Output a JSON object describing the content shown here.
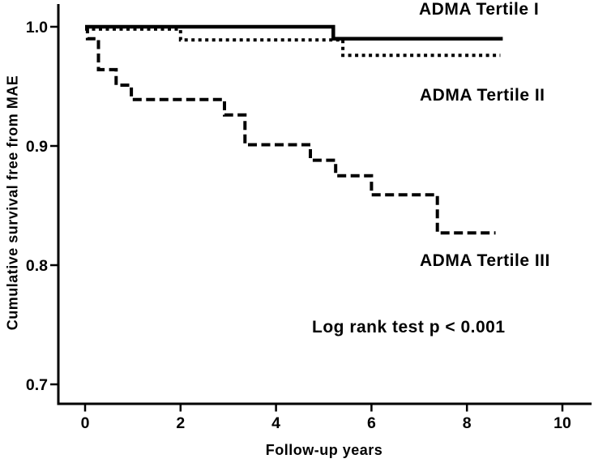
{
  "figure": {
    "background_color": "#ffffff",
    "ink_color": "#000000"
  },
  "chart_data": {
    "type": "line",
    "subtype": "kaplan-meier-step-curves",
    "title": "",
    "xlabel": "Follow-up years",
    "ylabel": "Cumulative survival free from MAE",
    "annotation": "Log rank test p < 0.001",
    "x_ticks": [
      0,
      2,
      4,
      6,
      8,
      10
    ],
    "y_ticks": [
      1.0,
      0.9,
      0.8,
      0.7
    ],
    "y_tick_labels": [
      "1.0",
      "0.9",
      "0.8",
      "0.7"
    ],
    "xlim": [
      -0.56,
      10.6
    ],
    "ylim": [
      0.684,
      1.019
    ],
    "grid": false,
    "legend_position": "labels-inside-plot",
    "series": [
      {
        "name": "ADMA Tertile I",
        "line_style": "solid",
        "steps": [
          [
            0,
            1.0
          ],
          [
            5.2,
            0.99
          ]
        ],
        "end_x": 8.75
      },
      {
        "name": "ADMA Tertile II",
        "line_style": "dotted",
        "steps": [
          [
            0,
            0.998
          ],
          [
            2.0,
            0.989
          ],
          [
            5.4,
            0.976
          ]
        ],
        "end_x": 8.7
      },
      {
        "name": "ADMA Tertile III",
        "line_style": "dashed",
        "steps": [
          [
            0,
            1.0
          ],
          [
            0.05,
            0.99
          ],
          [
            0.28,
            0.964
          ],
          [
            0.65,
            0.951
          ],
          [
            0.97,
            0.939
          ],
          [
            2.92,
            0.926
          ],
          [
            3.35,
            0.901
          ],
          [
            4.72,
            0.888
          ],
          [
            5.25,
            0.875
          ],
          [
            6.0,
            0.859
          ],
          [
            7.38,
            0.827
          ]
        ],
        "end_x": 8.6
      }
    ]
  }
}
